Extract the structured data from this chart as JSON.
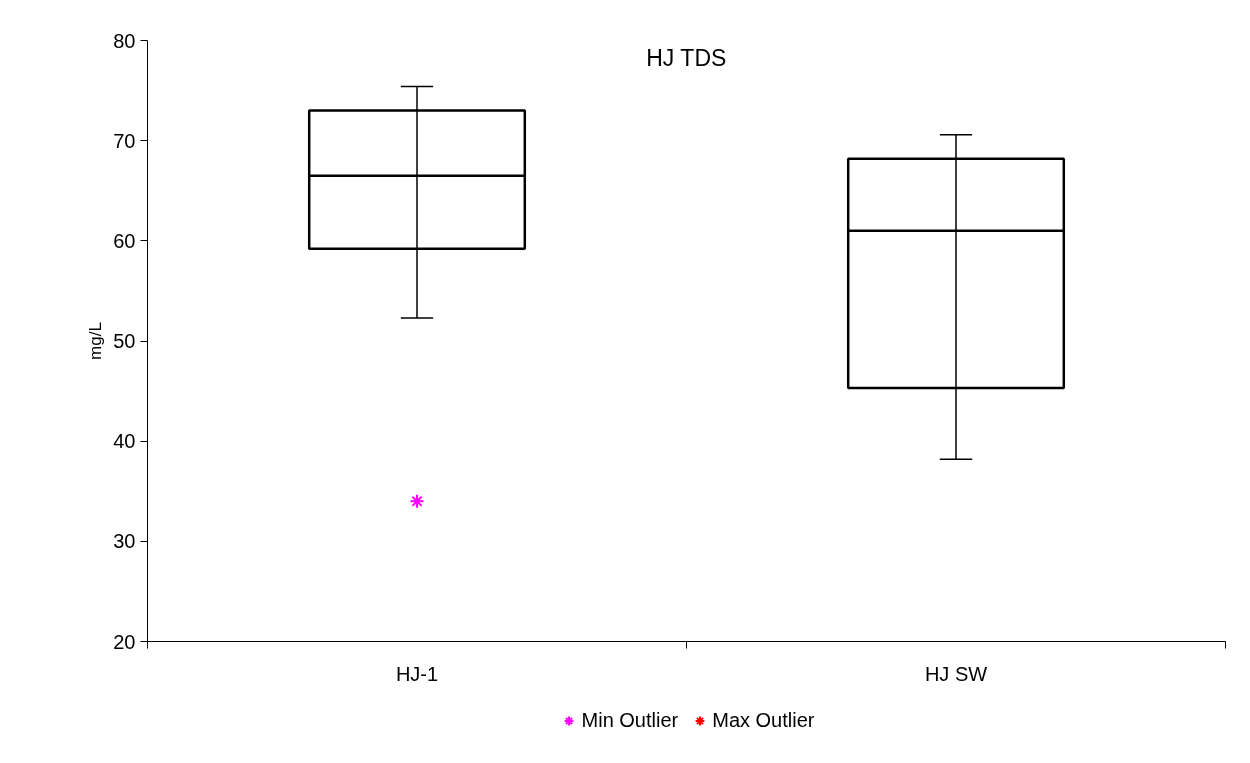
{
  "chart_data": {
    "type": "box",
    "title": "HJ TDS",
    "ylabel": "mg/L",
    "categories": [
      "HJ-1",
      "HJ SW"
    ],
    "boxes": [
      {
        "low": 52.3,
        "q1": 59.2,
        "median": 66.5,
        "q3": 73.0,
        "high": 75.4
      },
      {
        "low": 38.2,
        "q1": 45.3,
        "median": 61.0,
        "q3": 68.2,
        "high": 70.6
      }
    ],
    "series": [
      {
        "name": "Min Outlier",
        "type": "scatter",
        "color": "#ff00ff",
        "values": [
          34,
          null
        ]
      },
      {
        "name": "Max Outlier",
        "type": "scatter",
        "color": "#ff0000",
        "values": [
          null,
          null
        ]
      }
    ],
    "marker": "cross",
    "ylim": [
      20,
      80
    ],
    "yticks": [
      20,
      30,
      40,
      50,
      60,
      70,
      80
    ],
    "grid": false,
    "legend": "bottom"
  }
}
